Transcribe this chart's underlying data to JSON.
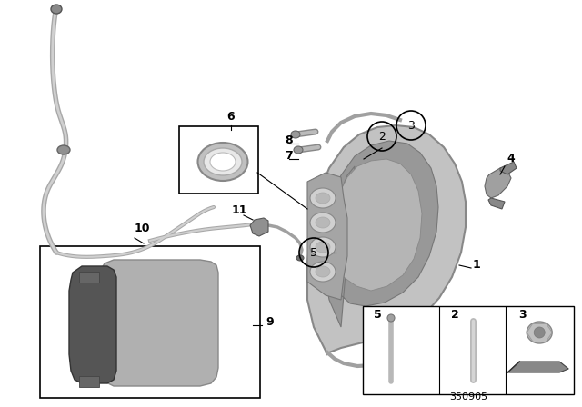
{
  "bg_color": "#ffffff",
  "fig_width": 6.4,
  "fig_height": 4.48,
  "dpi": 100,
  "diagram_number": "350905",
  "caliper_color": "#c0c0c0",
  "caliper_dark": "#909090",
  "caliper_mid": "#a8a8a8",
  "wire_color": "#a0a0a0",
  "pad_dark": "#505050",
  "pad_light": "#a8a8a8",
  "line_color": "#000000",
  "label_fs": 9,
  "circle_label_fs": 9
}
